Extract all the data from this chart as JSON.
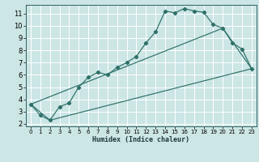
{
  "xlabel": "Humidex (Indice chaleur)",
  "bg_color": "#cce5e5",
  "grid_color": "#ffffff",
  "line_color": "#2d7068",
  "xlim": [
    -0.5,
    23.5
  ],
  "ylim": [
    1.8,
    11.7
  ],
  "xticks": [
    0,
    1,
    2,
    3,
    4,
    5,
    6,
    7,
    8,
    9,
    10,
    11,
    12,
    13,
    14,
    15,
    16,
    17,
    18,
    19,
    20,
    21,
    22,
    23
  ],
  "yticks": [
    2,
    3,
    4,
    5,
    6,
    7,
    8,
    9,
    10,
    11
  ],
  "line1_x": [
    0,
    1,
    2,
    3,
    4,
    5,
    6,
    7,
    8,
    9,
    10,
    11,
    12,
    13,
    14,
    15,
    16,
    17,
    18,
    19,
    20,
    21,
    22,
    23
  ],
  "line1_y": [
    3.6,
    2.7,
    2.3,
    3.4,
    3.7,
    5.0,
    5.8,
    6.2,
    6.0,
    6.6,
    7.0,
    7.5,
    8.6,
    9.5,
    11.2,
    11.05,
    11.4,
    11.2,
    11.1,
    10.1,
    9.8,
    8.6,
    8.1,
    6.5
  ],
  "line2_x": [
    0,
    2,
    23
  ],
  "line2_y": [
    3.6,
    2.3,
    6.5
  ],
  "line3_x": [
    0,
    20,
    23
  ],
  "line3_y": [
    3.6,
    9.8,
    6.5
  ]
}
